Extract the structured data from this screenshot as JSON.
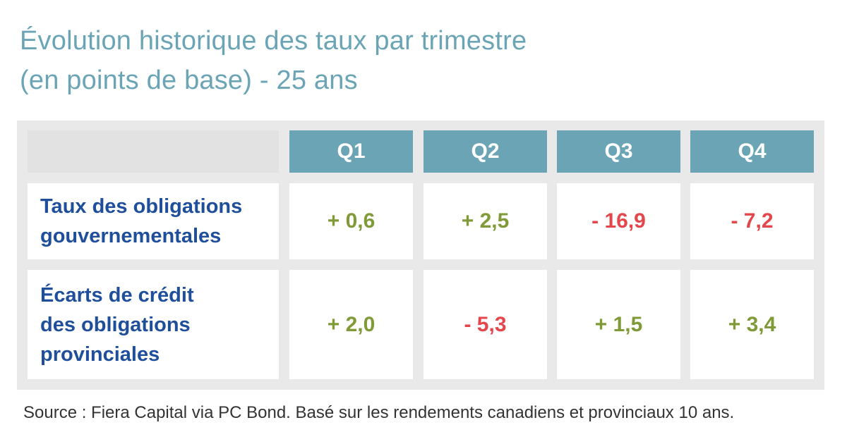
{
  "title": {
    "line1": "Évolution historique des taux par trimestre",
    "line2": "(en points de base) - 25 ans"
  },
  "chart_data": {
    "type": "table",
    "columns": [
      "Q1",
      "Q2",
      "Q3",
      "Q4"
    ],
    "rows": [
      {
        "label_lines": [
          "Taux des obligations",
          "gouvernementales"
        ],
        "values": [
          0.6,
          2.5,
          -16.9,
          -7.2
        ],
        "display": [
          "+ 0,6",
          "+ 2,5",
          "- 16,9",
          "- 7,2"
        ]
      },
      {
        "label_lines": [
          "Écarts de crédit",
          "des obligations",
          "provinciales"
        ],
        "values": [
          2.0,
          -5.3,
          1.5,
          3.4
        ],
        "display": [
          "+ 2,0",
          "- 5,3",
          "+ 1,5",
          "+ 3,4"
        ]
      }
    ]
  },
  "colors": {
    "title": "#6ba5b5",
    "header_bg": "#6ba5b5",
    "label": "#1f4f9a",
    "positive": "#7f9a37",
    "negative": "#e3474b",
    "frame": "#e9e9e9"
  },
  "source": "Source : Fiera Capital via PC Bond. Basé sur les rendements canadiens et provinciaux 10 ans."
}
